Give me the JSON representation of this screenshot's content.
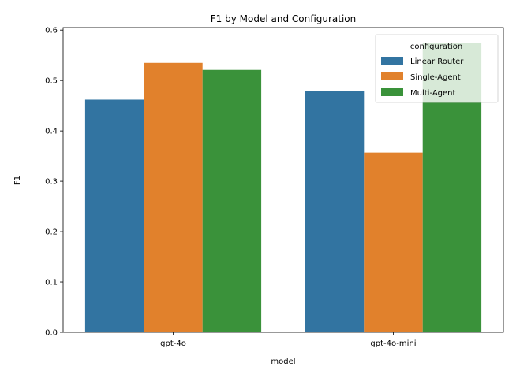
{
  "chart_data": {
    "type": "bar",
    "title": "F1 by Model and Configuration",
    "xlabel": "model",
    "ylabel": "F1",
    "categories": [
      "gpt-4o",
      "gpt-4o-mini"
    ],
    "series": [
      {
        "name": "Linear Router",
        "color": "#3274a1",
        "values": [
          0.462,
          0.479
        ]
      },
      {
        "name": "Single-Agent",
        "color": "#e1812c",
        "values": [
          0.535,
          0.357
        ]
      },
      {
        "name": "Multi-Agent",
        "color": "#3a923a",
        "values": [
          0.521,
          0.574
        ]
      }
    ],
    "ylim": [
      0,
      0.605
    ],
    "yticks": [
      0.0,
      0.1,
      0.2,
      0.3,
      0.4,
      0.5,
      0.6
    ],
    "ytick_labels": [
      "0.0",
      "0.1",
      "0.2",
      "0.3",
      "0.4",
      "0.5",
      "0.6"
    ],
    "grid": false,
    "legend": {
      "title": "configuration",
      "position": "top-right"
    }
  }
}
